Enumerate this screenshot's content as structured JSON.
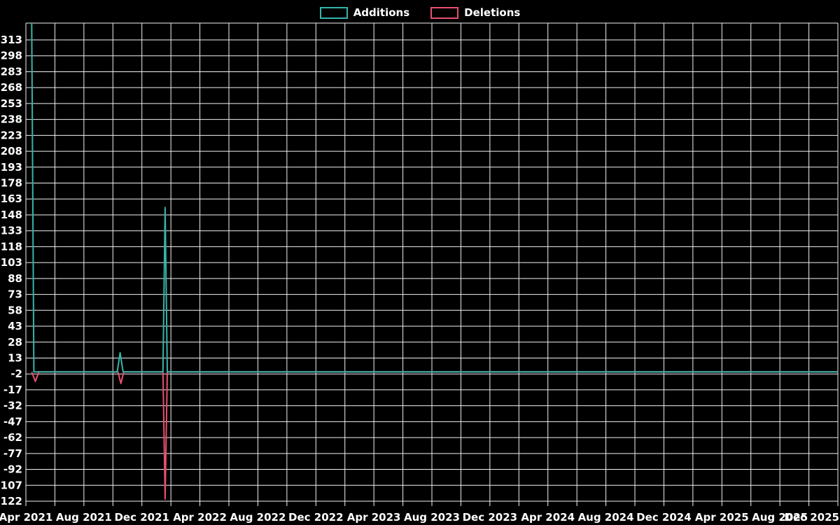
{
  "legend": {
    "items": [
      {
        "label": "Additions",
        "color": "#35b5ab"
      },
      {
        "label": "Deletions",
        "color": "#e8506e"
      }
    ]
  },
  "chart_data": {
    "type": "line",
    "title": "",
    "xlabel": "",
    "ylabel": "",
    "ylim": [
      -122,
      328
    ],
    "ytick_step": 15,
    "yticks": [
      313,
      298,
      283,
      268,
      253,
      238,
      223,
      208,
      193,
      178,
      163,
      148,
      133,
      118,
      103,
      88,
      73,
      58,
      43,
      28,
      13,
      -2,
      -17,
      -32,
      -47,
      -62,
      -77,
      -92,
      -107,
      -122
    ],
    "xlabels": [
      "Apr 2021",
      "Aug 2021",
      "Dec 2021",
      "Apr 2022",
      "Aug 2022",
      "Dec 2022",
      "Apr 2023",
      "Aug 2023",
      "Dec 2023",
      "Apr 2024",
      "Aug 2024",
      "Dec 2024",
      "Apr 2025",
      "Aug 2025",
      "Dec 2025"
    ],
    "xlabel_step_months": 4,
    "x_minor_step_months": 2,
    "x_span_months": 56,
    "grid": true,
    "legend_position": "top-center",
    "background_color": "#000000",
    "gridline_color": "#f2f2f2",
    "series": [
      {
        "name": "Additions",
        "color": "#35b5ab",
        "points_months_value": [
          [
            0.4,
            329
          ],
          [
            0.55,
            0
          ],
          [
            6.3,
            0
          ],
          [
            6.5,
            18
          ],
          [
            6.7,
            0
          ],
          [
            9.45,
            0
          ],
          [
            9.6,
            155
          ],
          [
            9.75,
            0
          ],
          [
            56.0,
            0
          ]
        ]
      },
      {
        "name": "Deletions",
        "color": "#e8506e",
        "points_months_value": [
          [
            0.4,
            0
          ],
          [
            0.65,
            -9
          ],
          [
            0.9,
            0
          ],
          [
            6.35,
            0
          ],
          [
            6.55,
            -11
          ],
          [
            6.75,
            0
          ],
          [
            9.45,
            0
          ],
          [
            9.6,
            -120
          ],
          [
            9.75,
            0
          ],
          [
            56.0,
            0
          ]
        ]
      }
    ]
  }
}
